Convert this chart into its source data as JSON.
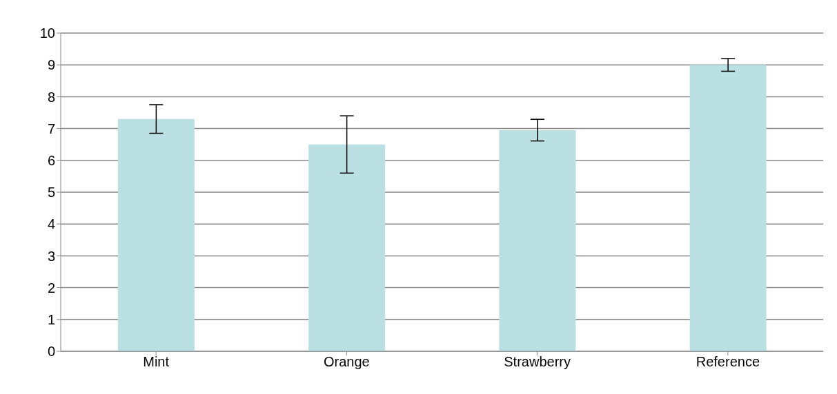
{
  "chart_data": {
    "type": "bar",
    "categories": [
      "Mint",
      "Orange",
      "Strawberry",
      "Reference"
    ],
    "series": [
      {
        "color": "#bbe0e3",
        "values": [
          7.3,
          6.5,
          6.95,
          9.0
        ],
        "errors": [
          0.45,
          0.9,
          0.34,
          0.2
        ]
      }
    ],
    "ylim": [
      0,
      10
    ],
    "yticks": [
      0,
      1,
      2,
      3,
      4,
      5,
      6,
      7,
      8,
      9,
      10
    ],
    "grid": "y",
    "legend": false
  }
}
